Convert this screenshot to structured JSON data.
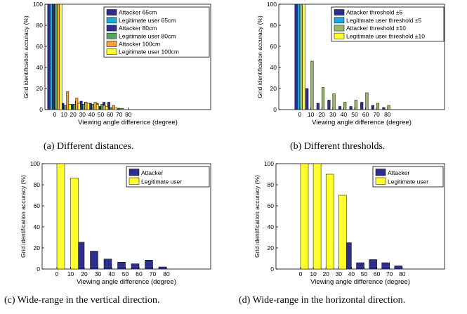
{
  "colors": {
    "navy": "#2e2e8c",
    "sky": "#1aa9e0",
    "green": "#58a55a",
    "orange": "#f7a341",
    "yellow": "#ffff2e",
    "olive": "#97b866"
  },
  "chart_data": [
    {
      "id": "a",
      "type": "bar",
      "caption": "(a) Different distances.",
      "xlabel": "Viewing angle difference (degree)",
      "ylabel": "Grid identification accuracy (%)",
      "ylim": [
        0,
        100
      ],
      "yticks": [
        0,
        20,
        40,
        60,
        80,
        100
      ],
      "categories": [
        "0",
        "10",
        "20",
        "30",
        "40",
        "50",
        "60",
        "70",
        "80"
      ],
      "legend_position": "top-right",
      "series": [
        {
          "name": "Attacker 65cm",
          "color": "#2e2e8c",
          "values": [
            100,
            6,
            4,
            8,
            7,
            3,
            7,
            1,
            0
          ]
        },
        {
          "name": "Legitimate user 65cm",
          "color": "#1aa9e0",
          "values": [
            100,
            4,
            5,
            5,
            5,
            6,
            2,
            1,
            0
          ]
        },
        {
          "name": "Attacker 80cm",
          "color": "#2e2e8c",
          "values": [
            100,
            6,
            5,
            8,
            6,
            3,
            7,
            1,
            0
          ]
        },
        {
          "name": "Legitimate user 80cm",
          "color": "#58a55a",
          "values": [
            100,
            4,
            5,
            5,
            5,
            5,
            2,
            1,
            0
          ]
        },
        {
          "name": "Attacker 100cm",
          "color": "#f7a341",
          "values": [
            100,
            17,
            11,
            7,
            7,
            4,
            4,
            1,
            0
          ]
        },
        {
          "name": "Legitimate user 100cm",
          "color": "#ffff2e",
          "values": [
            100,
            5,
            6,
            6,
            5,
            3,
            2,
            0,
            0
          ]
        }
      ]
    },
    {
      "id": "b",
      "type": "bar",
      "caption": "(b) Different thresholds.",
      "xlabel": "Viewing angle difference (degree)",
      "ylabel": "Grid identification accuracy (%)",
      "ylim": [
        0,
        100
      ],
      "yticks": [
        0,
        20,
        40,
        60,
        80,
        100
      ],
      "categories": [
        "0",
        "10",
        "20",
        "30",
        "40",
        "50",
        "60",
        "70",
        "80"
      ],
      "legend_position": "top-right",
      "series": [
        {
          "name": "Attacker threshold ±5",
          "color": "#2e2e8c",
          "values": [
            100,
            20,
            6,
            9,
            3,
            3,
            7,
            4,
            2
          ]
        },
        {
          "name": "Legitimate user threshold ±5",
          "color": "#1aa9e0",
          "values": [
            100,
            0,
            0,
            0,
            0,
            0,
            0,
            0,
            0
          ]
        },
        {
          "name": "Attacker threshold ±10",
          "color": "#97b866",
          "values": [
            100,
            46,
            21,
            15,
            7,
            9,
            16,
            6,
            4
          ]
        },
        {
          "name": "Legitimate user threshold ±10",
          "color": "#ffff2e",
          "values": [
            100,
            0,
            0,
            0,
            0,
            0,
            0,
            0,
            0
          ]
        }
      ]
    },
    {
      "id": "c",
      "type": "bar",
      "caption": "(c) Wide-range in the vertical direction.",
      "xlabel": "Viewing angle difference (degree)",
      "ylabel": "Grid identification accuracy (%)",
      "ylim": [
        0,
        100
      ],
      "yticks": [
        0,
        20,
        40,
        60,
        80,
        100
      ],
      "categories": [
        "0",
        "10",
        "20",
        "30",
        "40",
        "50",
        "60",
        "70",
        "80"
      ],
      "legend_position": "top-right",
      "series": [
        {
          "name": "Attacker",
          "color": "#2e2e8c",
          "values": [
            0,
            0,
            25.5,
            17,
            9.5,
            6.5,
            5,
            8.5,
            2
          ]
        },
        {
          "name": "Legitimate user",
          "color": "#ffff2e",
          "values": [
            100,
            86.5,
            0,
            0,
            0,
            0,
            0,
            0,
            0
          ]
        }
      ]
    },
    {
      "id": "d",
      "type": "bar",
      "caption": "(d) Wide-range in the horizontal direction.",
      "xlabel": "Viewing angle difference (degree)",
      "ylabel": "Grid identification accuracy (%)",
      "ylim": [
        0,
        100
      ],
      "yticks": [
        0,
        20,
        40,
        60,
        80,
        100
      ],
      "categories": [
        "0",
        "10",
        "20",
        "30",
        "40",
        "50",
        "60",
        "70",
        "80"
      ],
      "legend_position": "top-right",
      "series": [
        {
          "name": "Attacker",
          "color": "#2e2e8c",
          "values": [
            0,
            0,
            0,
            0,
            25,
            6,
            9,
            6,
            3
          ]
        },
        {
          "name": "Legitimate user",
          "color": "#ffff2e",
          "values": [
            100,
            100,
            90,
            70,
            0,
            0,
            0,
            0,
            0
          ]
        }
      ]
    }
  ]
}
